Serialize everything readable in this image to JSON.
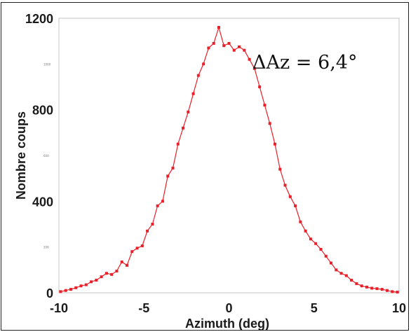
{
  "chart_data": {
    "type": "line",
    "title": "",
    "xlabel": "Azimuth (deg)",
    "ylabel": "Nombre coups",
    "xlim": [
      -10,
      10
    ],
    "ylim": [
      0,
      1200
    ],
    "x_ticks": [
      "-10",
      "-5",
      "0",
      "5",
      "10"
    ],
    "y_ticks": [
      "0",
      "400",
      "800",
      "1200"
    ],
    "minor_y_ticks": [
      "200",
      "600",
      "1000"
    ],
    "grid": false,
    "series_color": "#e8202a",
    "annotation": "ΔAz = 6,4°",
    "series": [
      {
        "x": [
          -9.9,
          -9.6,
          -9.3,
          -9.0,
          -8.7,
          -8.4,
          -8.1,
          -7.8,
          -7.5,
          -7.2,
          -6.9,
          -6.6,
          -6.3,
          -6.0,
          -5.7,
          -5.4,
          -5.1,
          -4.8,
          -4.5,
          -4.2,
          -3.9,
          -3.6,
          -3.3,
          -3.0,
          -2.7,
          -2.4,
          -2.1,
          -1.8,
          -1.5,
          -1.2,
          -0.9,
          -0.6,
          -0.3,
          0.0,
          0.3,
          0.6,
          0.9,
          1.2,
          1.5,
          1.8,
          2.1,
          2.4,
          2.7,
          3.0,
          3.3,
          3.6,
          3.9,
          4.2,
          4.5,
          4.8,
          5.1,
          5.4,
          5.7,
          6.0,
          6.3,
          6.6,
          6.9,
          7.2,
          7.5,
          7.8,
          8.1,
          8.4,
          8.7,
          9.0,
          9.3,
          9.6,
          9.9
        ],
        "values": [
          5,
          10,
          15,
          22,
          30,
          35,
          48,
          55,
          70,
          85,
          80,
          95,
          135,
          120,
          180,
          195,
          205,
          270,
          300,
          380,
          400,
          510,
          545,
          650,
          720,
          790,
          870,
          950,
          1000,
          1070,
          1090,
          1160,
          1080,
          1090,
          1060,
          1075,
          1060,
          1020,
          980,
          900,
          820,
          740,
          650,
          540,
          470,
          420,
          380,
          310,
          270,
          235,
          215,
          190,
          160,
          130,
          100,
          85,
          75,
          55,
          40,
          30,
          25,
          20,
          18,
          15,
          10,
          5,
          3
        ]
      }
    ]
  }
}
